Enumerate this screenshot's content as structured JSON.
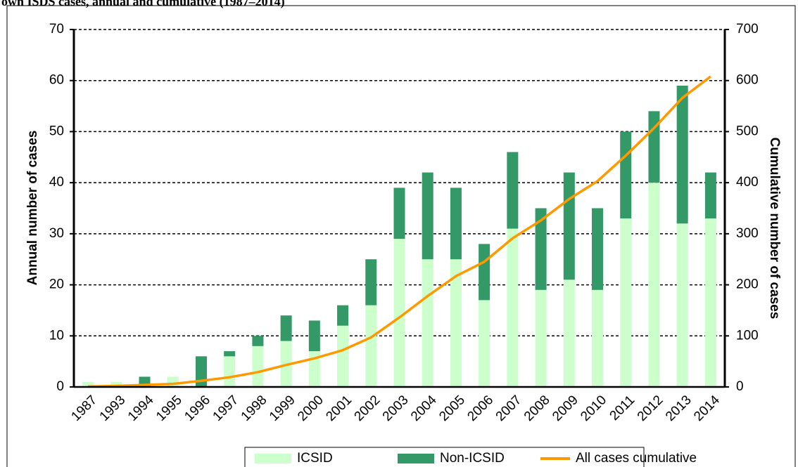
{
  "chart_data": {
    "type": "bar",
    "title": "own ISDS cases, annual and cumulative (1987–2014)",
    "y_label": "Annual number of cases",
    "y2_label": "Cumulative number of cases",
    "categories": [
      "1987",
      "1993",
      "1994",
      "1995",
      "1996",
      "1997",
      "1998",
      "1999",
      "2000",
      "2001",
      "2002",
      "2003",
      "2004",
      "2005",
      "2006",
      "2007",
      "2008",
      "2009",
      "2010",
      "2011",
      "2012",
      "2013",
      "2014"
    ],
    "series": [
      {
        "name": "ICSID",
        "color": "#ccffcc",
        "type": "bar",
        "values": [
          1,
          1,
          0,
          2,
          0,
          6,
          8,
          9,
          7,
          12,
          16,
          29,
          25,
          25,
          17,
          31,
          19,
          21,
          19,
          33,
          40,
          32,
          33
        ]
      },
      {
        "name": "Non-ICSID",
        "color": "#339966",
        "type": "bar",
        "values": [
          0,
          0,
          2,
          0,
          6,
          1,
          2,
          5,
          6,
          4,
          9,
          10,
          17,
          14,
          11,
          15,
          16,
          21,
          16,
          17,
          14,
          27,
          9
        ]
      },
      {
        "name": "All cases cumulative",
        "color": "#ff9900",
        "type": "line",
        "axis": "y2",
        "values": [
          1,
          2,
          4,
          6,
          12,
          19,
          29,
          43,
          56,
          72,
          97,
          136,
          178,
          217,
          245,
          291,
          326,
          368,
          403,
          453,
          507,
          566,
          608
        ]
      }
    ],
    "stacked": true,
    "ylim": [
      0,
      70
    ],
    "yticks": [
      0,
      10,
      20,
      30,
      40,
      50,
      60,
      70
    ],
    "y2lim": [
      0,
      700
    ],
    "y2ticks": [
      0,
      100,
      200,
      300,
      400,
      500,
      600,
      700
    ],
    "grid": true,
    "legend": "bottom"
  }
}
